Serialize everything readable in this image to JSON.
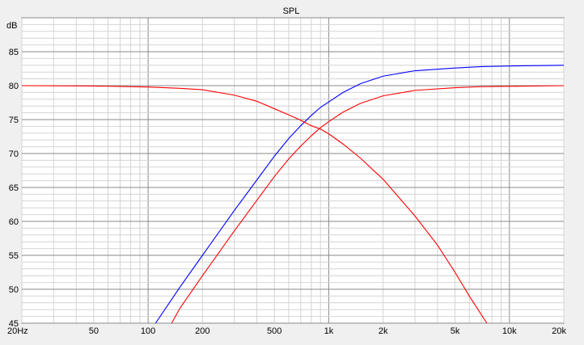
{
  "chart_data": {
    "type": "line",
    "title": "SPL",
    "ylabel": "dB",
    "xlabel": "",
    "x_scale": "log",
    "xlim": [
      20,
      20000
    ],
    "ylim": [
      45,
      90
    ],
    "grid": true,
    "legend": "none",
    "x_tick_labels": [
      {
        "value": 20,
        "label": "20Hz"
      },
      {
        "value": 50,
        "label": "50"
      },
      {
        "value": 100,
        "label": "100"
      },
      {
        "value": 200,
        "label": "200"
      },
      {
        "value": 500,
        "label": "500"
      },
      {
        "value": 1000,
        "label": "1k"
      },
      {
        "value": 2000,
        "label": "2k"
      },
      {
        "value": 5000,
        "label": "5k"
      },
      {
        "value": 10000,
        "label": "10k"
      },
      {
        "value": 20000,
        "label": "20k"
      }
    ],
    "y_ticks": [
      45,
      50,
      55,
      60,
      65,
      70,
      75,
      80,
      85
    ],
    "series": [
      {
        "color": "#0000ff",
        "x": [
          110,
          150,
          200,
          300,
          400,
          500,
          600,
          700,
          800,
          900,
          1000,
          1200,
          1500,
          2000,
          3000,
          5000,
          7000,
          10000,
          20000
        ],
        "y": [
          45,
          50.3,
          55,
          61.6,
          66.1,
          69.6,
          72.2,
          74.1,
          75.6,
          76.8,
          77.6,
          79.0,
          80.3,
          81.4,
          82.2,
          82.6,
          82.8,
          82.9,
          83
        ]
      },
      {
        "color": "#ff0000",
        "x": [
          135,
          150,
          200,
          300,
          400,
          500,
          600,
          700,
          800,
          900,
          1000,
          1200,
          1500,
          2000,
          3000,
          5000,
          7000,
          10000,
          20000
        ],
        "y": [
          45,
          47.2,
          52,
          58.6,
          63.1,
          66.6,
          69.2,
          71.1,
          72.6,
          73.8,
          74.7,
          76.1,
          77.4,
          78.5,
          79.3,
          79.7,
          79.85,
          79.9,
          80
        ]
      },
      {
        "color": "#ff0000",
        "x": [
          20,
          50,
          100,
          150,
          200,
          300,
          400,
          500,
          600,
          700,
          800,
          900,
          1000,
          1200,
          1500,
          2000,
          3000,
          4000,
          5000,
          6000,
          7500
        ],
        "y": [
          80,
          79.95,
          79.8,
          79.6,
          79.4,
          78.6,
          77.7,
          76.6,
          75.7,
          74.9,
          74.1,
          73.6,
          72.9,
          71.4,
          69.3,
          66.2,
          60.8,
          56.5,
          52.5,
          49,
          45
        ]
      }
    ]
  }
}
